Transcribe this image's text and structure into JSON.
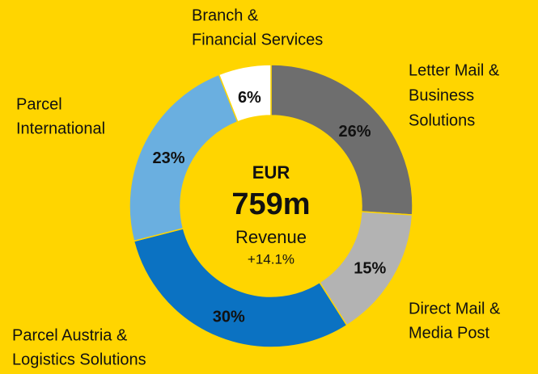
{
  "chart_data": {
    "type": "pie",
    "categories": [
      [
        "Letter Mail &",
        "Business",
        "Solutions"
      ],
      [
        "Direct Mail &",
        "Media Post"
      ],
      [
        "Parcel Austria &",
        "Logistics Solutions"
      ],
      [
        "Parcel",
        "International"
      ],
      [
        "Branch &",
        "Financial Services"
      ]
    ],
    "values": [
      26,
      15,
      30,
      23,
      6
    ],
    "value_labels": [
      "26%",
      "15%",
      "30%",
      "23%",
      "6%"
    ],
    "colors": [
      "#6e6e6e",
      "#b3b3b3",
      "#0b72c2",
      "#6aafe0",
      "#ffffff"
    ],
    "center_text": [
      "EUR",
      "759m",
      "Revenue",
      "+14.1%"
    ],
    "background": "#ffd500"
  }
}
